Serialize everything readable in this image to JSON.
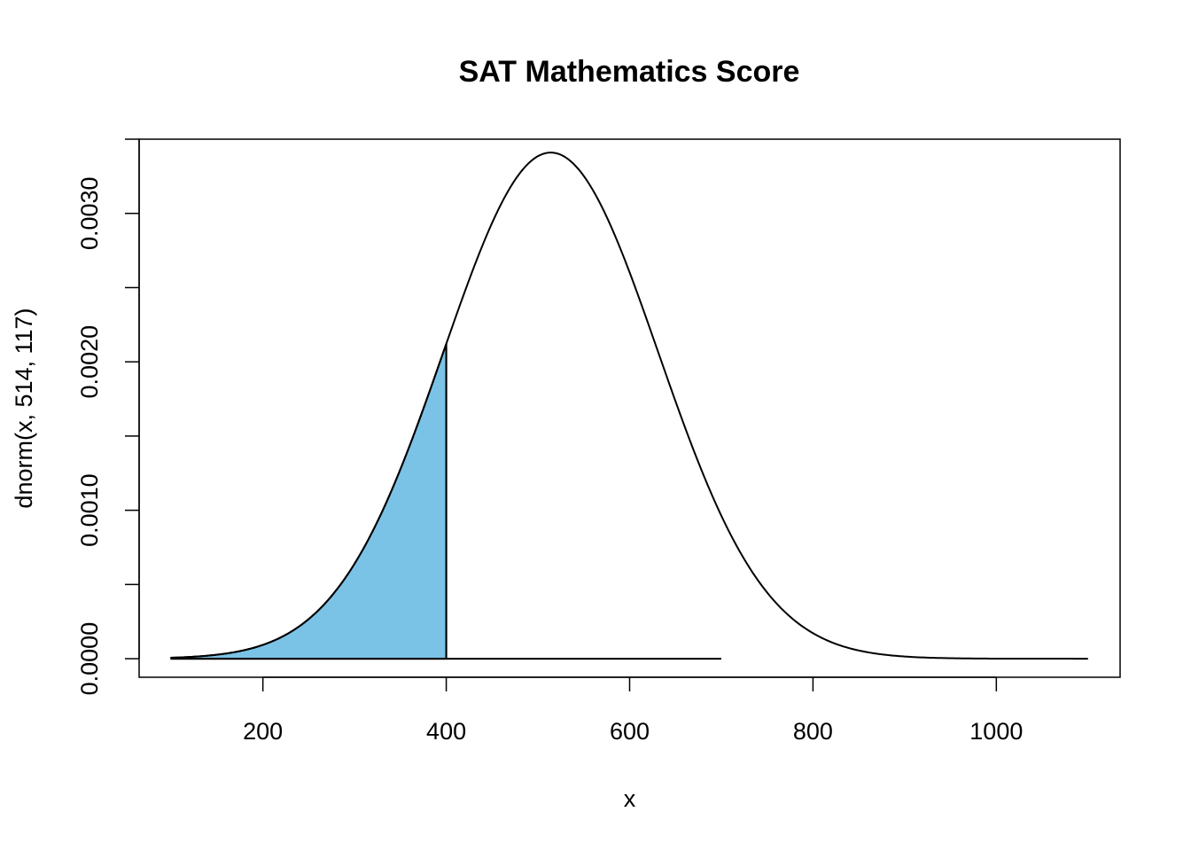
{
  "chart_data": {
    "type": "area",
    "title": "SAT Mathematics Score",
    "xlabel": "x",
    "ylabel": "dnorm(x, 514, 117)",
    "distribution": {
      "family": "normal",
      "mean": 514,
      "sd": 117
    },
    "curve_x_range": [
      100,
      1100
    ],
    "shaded_region": {
      "from": 100,
      "to": 400,
      "color": "#7BC3E6"
    },
    "baseline_segment": {
      "from": 100,
      "to": 700,
      "y": 0
    },
    "xlim": [
      65,
      1135
    ],
    "ylim": [
      -0.000125,
      0.0035
    ],
    "x_ticks": [
      200,
      400,
      600,
      800,
      1000
    ],
    "x_tick_labels": [
      "200",
      "400",
      "600",
      "800",
      "1000"
    ],
    "y_ticks": [
      0,
      0.0005,
      0.001,
      0.0015,
      0.002,
      0.0025,
      0.003,
      0.0035
    ],
    "y_tick_labels": [
      "0.0000",
      "",
      "0.0010",
      "",
      "0.0020",
      "",
      "0.0030",
      ""
    ],
    "grid": false,
    "legend": "none"
  }
}
